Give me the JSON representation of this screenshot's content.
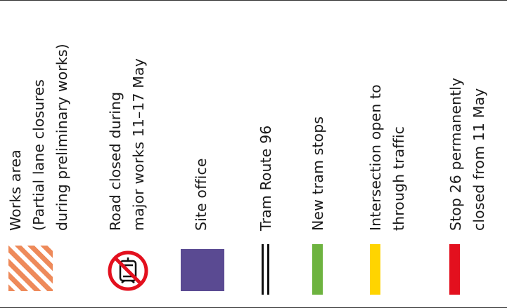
{
  "legend": {
    "items": [
      {
        "key": "works-area",
        "label": "Works area\n(Partial lane closures\nduring preliminary works)"
      },
      {
        "key": "road-closed",
        "label": "Road closed during\nmajor works 11–17 May"
      },
      {
        "key": "site-office",
        "label": "Site office"
      },
      {
        "key": "tram-route",
        "label": "Tram Route 96"
      },
      {
        "key": "new-stops",
        "label": "New tram stops"
      },
      {
        "key": "intersection",
        "label": "Intersection open to\nthrough traffic"
      },
      {
        "key": "stop-closed",
        "label": "Stop 26 permanently\nclosed from 11 May"
      }
    ]
  },
  "colors": {
    "works_area_hatch": "#ee8a5a",
    "road_closed_ring": "#e3101e",
    "site_office": "#5a4a92",
    "tram_route": "#111111",
    "new_stops": "#6db33f",
    "intersection": "#ffd400",
    "stop_closed": "#e3101e"
  },
  "icons": {
    "road_closed": "no-tram-prohibition-icon"
  }
}
